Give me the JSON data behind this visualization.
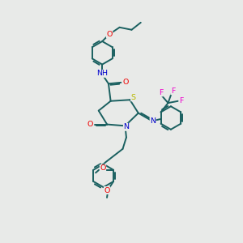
{
  "bg_color": "#e8eae8",
  "bond_color": "#1a6060",
  "bond_width": 1.4,
  "fig_size": [
    3.0,
    3.0
  ],
  "dpi": 100,
  "atom_colors": {
    "O": "#ee0000",
    "N": "#0000cc",
    "S": "#b8b800",
    "F": "#ee00cc",
    "C": "#1a6060"
  },
  "font_size": 6.8
}
